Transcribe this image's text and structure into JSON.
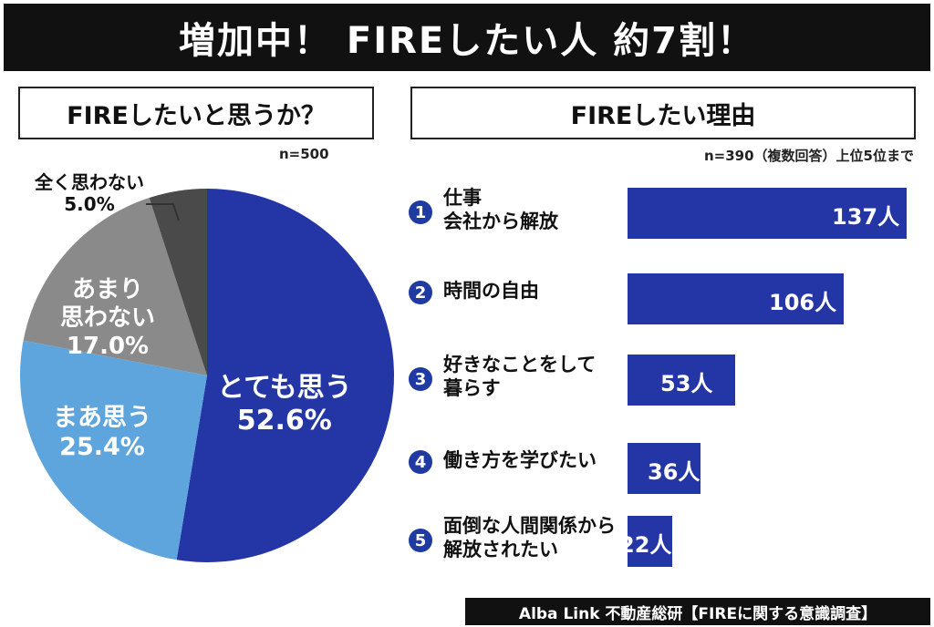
{
  "title": "増加中！ FIREしたい人 約7割！",
  "left_panel": {
    "header": "FIREしたいと思うか？",
    "n": "n=500"
  },
  "right_panel": {
    "header": "FIREしたい理由",
    "n": "n=390（複数回答）上位5位まで"
  },
  "source": "Alba Link 不動産総研【FIREに関する意識調査】",
  "colors": {
    "dark_blue": "#2436a6",
    "light_blue": "#5ea5de",
    "gray": "#8a8a8a",
    "dark_gray": "#4a4a4a"
  },
  "chart_data": [
    {
      "type": "pie",
      "slices": [
        {
          "label": "とても思う",
          "value": 52.6,
          "display": "52.6%",
          "color": "#2436a6"
        },
        {
          "label": "まあ思う",
          "value": 25.4,
          "display": "25.4%",
          "color": "#5ea5de"
        },
        {
          "label": "あまり思わない",
          "label_lines": [
            "あまり",
            "思わない"
          ],
          "value": 17.0,
          "display": "17.0%",
          "color": "#8a8a8a"
        },
        {
          "label": "全く思わない",
          "value": 5.0,
          "display": "5.0%",
          "color": "#4a4a4a"
        }
      ]
    },
    {
      "type": "bar",
      "orientation": "horizontal",
      "categories": [
        {
          "rank": "1",
          "lines": [
            "仕事",
            "会社から解放"
          ]
        },
        {
          "rank": "2",
          "lines": [
            "時間の自由"
          ]
        },
        {
          "rank": "3",
          "lines": [
            "好きなことをして",
            "暮らす"
          ]
        },
        {
          "rank": "4",
          "lines": [
            "働き方を学びたい"
          ]
        },
        {
          "rank": "5",
          "lines": [
            "面倒な人間関係から",
            "解放されたい"
          ]
        }
      ],
      "values": [
        137,
        106,
        53,
        36,
        22
      ],
      "value_labels": [
        "137人",
        "106人",
        "53人",
        "36人",
        "22人"
      ],
      "xlim": [
        0,
        137
      ]
    }
  ]
}
